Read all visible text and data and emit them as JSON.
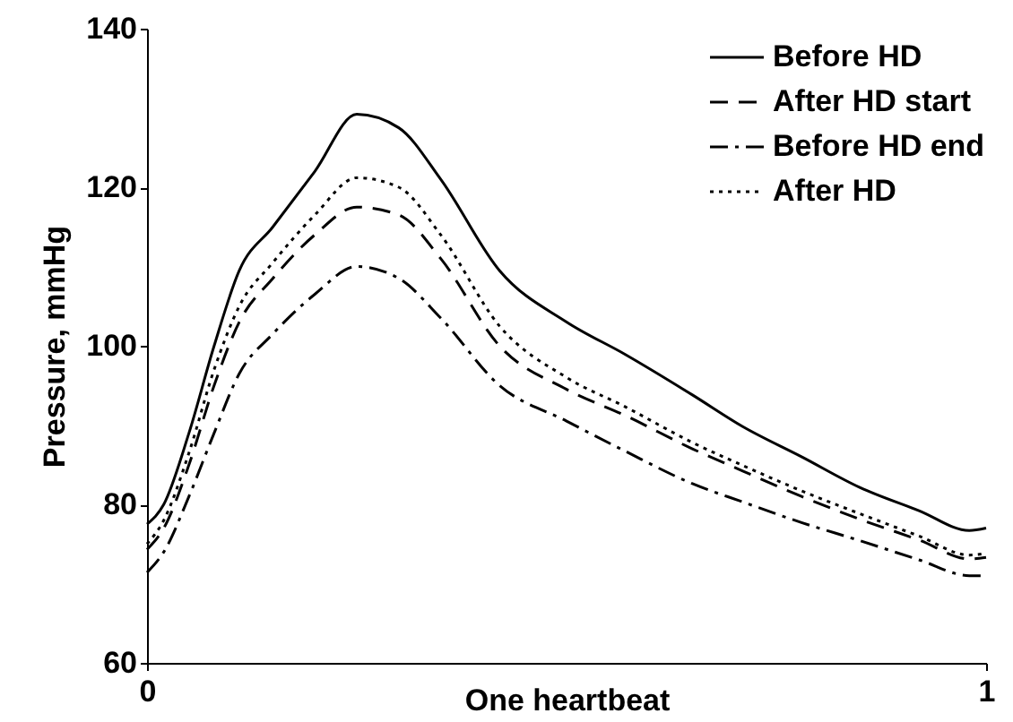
{
  "chart_data": {
    "type": "line",
    "xlabel": "One heartbeat",
    "ylabel": "Pressure, mmHg",
    "x": [
      0,
      0.02,
      0.05,
      0.08,
      0.11,
      0.15,
      0.2,
      0.25,
      0.3,
      0.35,
      0.42,
      0.5,
      0.57,
      0.65,
      0.71,
      0.78,
      0.85,
      0.92,
      0.98,
      1
    ],
    "series": [
      {
        "name": "Before HD",
        "color": "#000000",
        "line_style": "solid",
        "values": [
          77.5,
          80,
          89,
          100,
          109.5,
          115,
          122,
          129.2,
          127.5,
          121,
          109.5,
          103,
          98.9,
          93.8,
          89.8,
          86,
          82.1,
          79.2,
          76.7,
          77
        ]
      },
      {
        "name": "After HD start",
        "color": "#000000",
        "line_style": "dashed",
        "values": [
          74.3,
          77,
          85,
          95,
          103,
          108.5,
          114,
          117.5,
          116.5,
          111,
          100,
          94.5,
          91.2,
          87,
          84.2,
          81,
          78.1,
          75.5,
          73.1,
          73.3
        ]
      },
      {
        "name": "Before HD end",
        "color": "#000000",
        "line_style": "dashdot",
        "values": [
          71.4,
          74,
          81,
          89,
          96.5,
          101.5,
          106.5,
          110,
          108.5,
          103.5,
          95,
          90.5,
          86.7,
          82.6,
          80.3,
          77.7,
          75.4,
          73,
          71,
          71
        ]
      },
      {
        "name": "After HD",
        "color": "#000000",
        "line_style": "dotted",
        "values": [
          75,
          78,
          86.5,
          97,
          105,
          110.5,
          116.5,
          121.2,
          120,
          114,
          102.5,
          96,
          92.3,
          87.8,
          84.9,
          81.7,
          78.8,
          76,
          73.6,
          73.8
        ]
      }
    ],
    "xlim": [
      0,
      1
    ],
    "xticks": [
      0,
      1
    ],
    "ylim": [
      60,
      140
    ],
    "yticks": [
      60,
      80,
      100,
      120,
      140
    ],
    "grid": false,
    "legend": "top right",
    "marker": "none"
  }
}
